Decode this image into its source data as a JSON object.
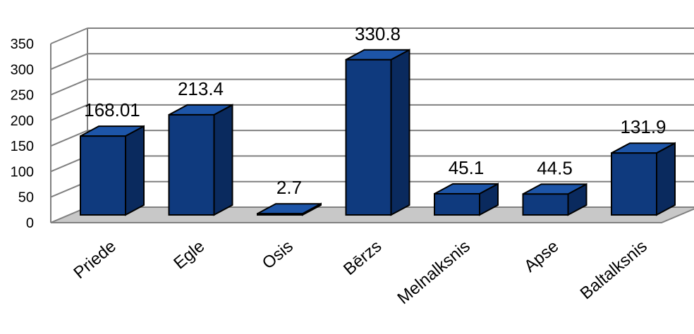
{
  "chart_data": {
    "type": "bar",
    "style": "3d-column",
    "categories": [
      "Priede",
      "Egle",
      "Osis",
      "Bērzs",
      "Melnalksnis",
      "Apse",
      "Baltalksnis"
    ],
    "values": [
      168.01,
      213.4,
      2.7,
      330.8,
      45.1,
      44.5,
      131.9
    ],
    "data_labels": [
      "168.01",
      "213.4",
      "2.7",
      "330.8",
      "45.1",
      "44.5",
      "131.9"
    ],
    "yticks": [
      0,
      50,
      100,
      150,
      200,
      250,
      300,
      350
    ],
    "ylim": [
      0,
      350
    ],
    "grid": true,
    "legend": "none",
    "colors": {
      "bar_front": "#0f3a7e",
      "bar_top": "#1d55a8",
      "bar_side": "#0a2a5e",
      "bar_stroke": "#000000",
      "floor": "#c8c8c8",
      "grid": "#808080"
    }
  }
}
